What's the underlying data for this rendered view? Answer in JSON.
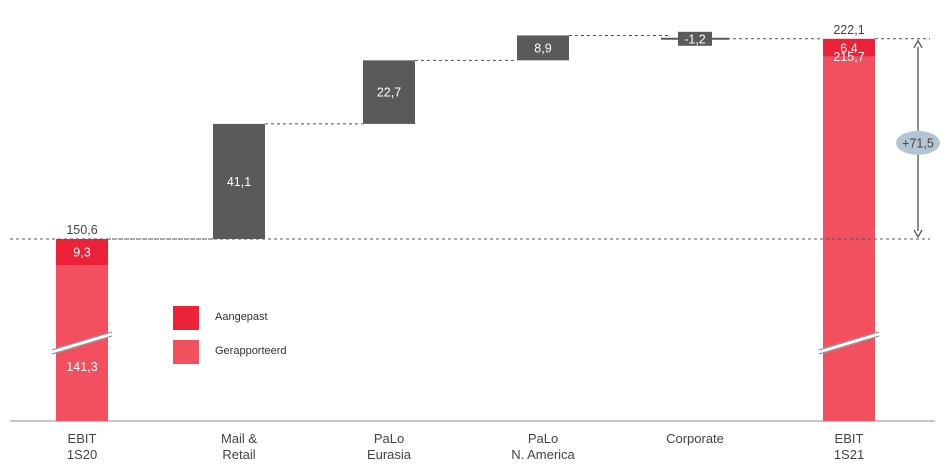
{
  "chart_data": {
    "type": "bar",
    "subtype": "waterfall",
    "ylim": [
      0,
      230
    ],
    "axis_break": true,
    "grid": false,
    "legend_position": "middle-left",
    "colors": {
      "aangepast": "#EB2238",
      "gerapporteerd": "#F2505F",
      "delta": "#595A5C",
      "badge": "#B3C5D2"
    },
    "legend": [
      {
        "key": "aangepast",
        "label": "Aangepast"
      },
      {
        "key": "gerapporteerd",
        "label": "Gerapporteerd"
      }
    ],
    "categories": [
      {
        "lines": [
          "EBIT",
          "1S20"
        ]
      },
      {
        "lines": [
          "Mail &",
          "Retail"
        ]
      },
      {
        "lines": [
          "PaLo",
          "Eurasia"
        ]
      },
      {
        "lines": [
          "PaLo",
          "N. America"
        ]
      },
      {
        "lines": [
          "Corporate"
        ]
      },
      {
        "lines": [
          "EBIT",
          "1S21"
        ]
      }
    ],
    "bars": [
      {
        "kind": "total",
        "gerapporteerd": 141.3,
        "aangepast": 9.3,
        "total": 150.6,
        "labels": {
          "gerapporteerd": "141,3",
          "aangepast": "9,3",
          "total": "150,6"
        }
      },
      {
        "kind": "delta",
        "start": 150.6,
        "end": 191.7,
        "label": "41,1"
      },
      {
        "kind": "delta",
        "start": 191.7,
        "end": 214.4,
        "label": "22,7"
      },
      {
        "kind": "delta",
        "start": 214.4,
        "end": 223.3,
        "label": "8,9"
      },
      {
        "kind": "delta",
        "start": 223.3,
        "end": 222.1,
        "label": "-1,2"
      },
      {
        "kind": "total",
        "gerapporteerd": 215.7,
        "aangepast": 6.4,
        "total": 222.1,
        "labels": {
          "gerapporteerd": "215,7",
          "aangepast": "6,4",
          "total": "222,1"
        }
      }
    ],
    "change": {
      "from": 150.6,
      "to": 222.1,
      "label": "+71,5"
    }
  }
}
